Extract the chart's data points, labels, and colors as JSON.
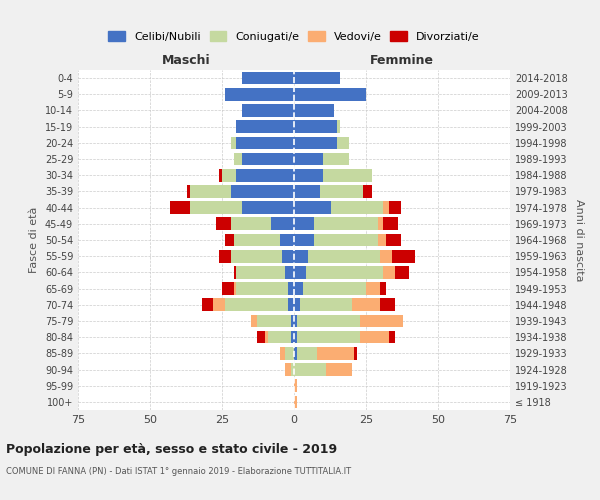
{
  "age_groups": [
    "100+",
    "95-99",
    "90-94",
    "85-89",
    "80-84",
    "75-79",
    "70-74",
    "65-69",
    "60-64",
    "55-59",
    "50-54",
    "45-49",
    "40-44",
    "35-39",
    "30-34",
    "25-29",
    "20-24",
    "15-19",
    "10-14",
    "5-9",
    "0-4"
  ],
  "birth_years": [
    "≤ 1918",
    "1919-1923",
    "1924-1928",
    "1929-1933",
    "1934-1938",
    "1939-1943",
    "1944-1948",
    "1949-1953",
    "1954-1958",
    "1959-1963",
    "1964-1968",
    "1969-1973",
    "1974-1978",
    "1979-1983",
    "1984-1988",
    "1989-1993",
    "1994-1998",
    "1999-2003",
    "2004-2008",
    "2009-2013",
    "2014-2018"
  ],
  "males": {
    "celibe": [
      0,
      0,
      0,
      0,
      1,
      1,
      2,
      2,
      3,
      4,
      5,
      8,
      18,
      22,
      20,
      18,
      20,
      20,
      18,
      24,
      18
    ],
    "coniugato": [
      0,
      0,
      1,
      3,
      8,
      12,
      22,
      18,
      17,
      18,
      16,
      14,
      18,
      14,
      5,
      3,
      2,
      0,
      0,
      0,
      0
    ],
    "vedovo": [
      0,
      0,
      2,
      2,
      1,
      2,
      4,
      1,
      0,
      0,
      0,
      0,
      0,
      0,
      0,
      0,
      0,
      0,
      0,
      0,
      0
    ],
    "divorziato": [
      0,
      0,
      0,
      0,
      3,
      0,
      4,
      4,
      1,
      4,
      3,
      5,
      7,
      1,
      1,
      0,
      0,
      0,
      0,
      0,
      0
    ]
  },
  "females": {
    "nubile": [
      0,
      0,
      0,
      1,
      1,
      1,
      2,
      3,
      4,
      5,
      7,
      7,
      13,
      9,
      10,
      10,
      15,
      15,
      14,
      25,
      16
    ],
    "coniugata": [
      0,
      0,
      11,
      7,
      22,
      22,
      18,
      22,
      27,
      25,
      22,
      22,
      18,
      15,
      17,
      9,
      4,
      1,
      0,
      0,
      0
    ],
    "vedova": [
      1,
      1,
      9,
      13,
      10,
      15,
      10,
      5,
      4,
      4,
      3,
      2,
      2,
      0,
      0,
      0,
      0,
      0,
      0,
      0,
      0
    ],
    "divorziata": [
      0,
      0,
      0,
      1,
      2,
      0,
      5,
      2,
      5,
      8,
      5,
      5,
      4,
      3,
      0,
      0,
      0,
      0,
      0,
      0,
      0
    ]
  },
  "colors": {
    "celibe": "#4472C4",
    "coniugato": "#C5D9A0",
    "vedovo": "#FBAD72",
    "divorziato": "#CC0000"
  },
  "xlim": 75,
  "title": "Popolazione per età, sesso e stato civile - 2019",
  "subtitle": "COMUNE DI FANNA (PN) - Dati ISTAT 1° gennaio 2019 - Elaborazione TUTTITALIA.IT",
  "ylabel_left": "Fasce di età",
  "ylabel_right": "Anni di nascita",
  "xlabel_left": "Maschi",
  "xlabel_right": "Femmine",
  "legend_labels": [
    "Celibi/Nubili",
    "Coniugati/e",
    "Vedovi/e",
    "Divorziati/e"
  ],
  "bg_color": "#f0f0f0",
  "plot_bg_color": "#ffffff",
  "grid_color": "#cccccc"
}
